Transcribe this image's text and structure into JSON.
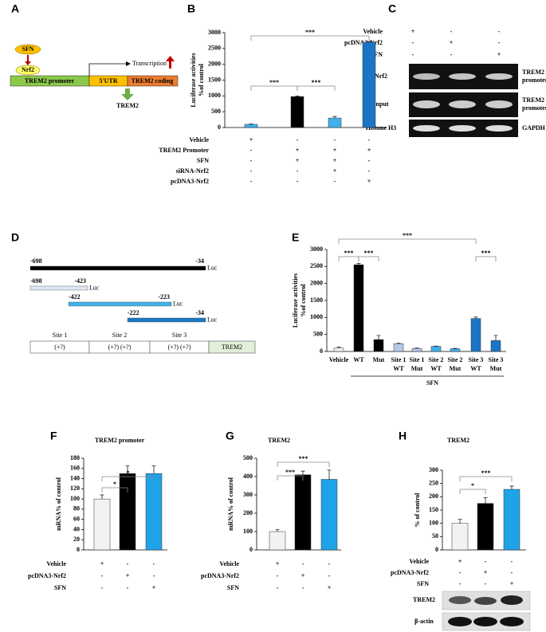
{
  "panels": [
    "A",
    "B",
    "C",
    "D",
    "E",
    "F",
    "G",
    "H"
  ],
  "diagram_a": {
    "sfn": "SFN",
    "nrf2": "Nrf2",
    "promoter": "TREM2 promoter",
    "utr": "5'UTR",
    "coding": "TREM2 coding",
    "transcription": "Transcription",
    "product": "TREM2"
  },
  "blot_c": {
    "conditions": [
      {
        "name": "Vehicle",
        "marks": [
          "+",
          "-",
          "-"
        ]
      },
      {
        "name": "pcDNA3-Nrf2",
        "marks": [
          "-",
          "+",
          "-"
        ]
      },
      {
        "name": "SFN",
        "marks": [
          "-",
          "-",
          "+"
        ]
      }
    ],
    "rows": [
      {
        "name": "Nrf2",
        "target": "TREM2 promoter"
      },
      {
        "name": "Input",
        "target": "TREM2 promoter"
      },
      {
        "name": "Histone H3",
        "target": "GAPDH"
      }
    ]
  },
  "constructs_d": {
    "constructs": [
      {
        "start": "-698",
        "end": "-34",
        "label": "Luc"
      },
      {
        "start": "-698",
        "end": "-423",
        "label": "Luc"
      },
      {
        "start": "-422",
        "end": "-223",
        "label": "Luc"
      },
      {
        "start": "-222",
        "end": "-34",
        "label": "Luc"
      }
    ],
    "sites": [
      {
        "name": "Site 1",
        "marks": "(+?)"
      },
      {
        "name": "Site 2",
        "marks": "(+?)  (+?)"
      },
      {
        "name": "Site 3",
        "marks": "(+?)  (+?)"
      }
    ],
    "gene": "TREM2"
  },
  "blot_h": {
    "rows": [
      "TREM2",
      "β-actin"
    ]
  },
  "chart_data": [
    {
      "type": "bar",
      "ylabel": [
        "Luciferase  activities",
        "%of control"
      ],
      "categories": [
        null,
        null,
        null,
        null
      ],
      "values": [
        100,
        980,
        300,
        2700
      ],
      "errors": [
        15,
        20,
        50,
        20
      ],
      "colors": [
        "#3fb0ea",
        "#000000",
        "#3fb0ea",
        "#1b75c4"
      ],
      "ylim": [
        0,
        3000
      ],
      "yticks": [
        0,
        500,
        1000,
        1500,
        2000,
        2500,
        3000
      ],
      "significance": [
        {
          "label": "***",
          "from": 0,
          "to": 1
        },
        {
          "label": "***",
          "from": 1,
          "to": 2
        },
        {
          "label": "***",
          "from": 0,
          "to": 3
        }
      ],
      "conditions": [
        {
          "name": "Vehicle",
          "marks": [
            "+",
            "-",
            "-",
            "-"
          ]
        },
        {
          "name": "TREM2 Promoter",
          "marks": [
            "-",
            "+",
            "+",
            "+"
          ]
        },
        {
          "name": "SFN",
          "marks": [
            "-",
            "+",
            "+",
            "-"
          ]
        },
        {
          "name": "siRNA-Nrf2",
          "marks": [
            "-",
            "-",
            "+",
            "-"
          ]
        },
        {
          "name": "pcDNA3-Nrf2",
          "marks": [
            "-",
            "-",
            "-",
            "+"
          ]
        }
      ]
    },
    {
      "type": "bar",
      "ylabel": [
        "Luciferase  activities",
        "%of control"
      ],
      "categories": [
        "Vehicle",
        "WT",
        "Mut",
        "Site 1 WT",
        "Site 1 Mut",
        "Site 2 WT",
        "Site 2 Mut",
        "Site 3 WT",
        "Site 3 Mut"
      ],
      "group_label": "SFN",
      "values": [
        100,
        2550,
        350,
        230,
        90,
        150,
        80,
        970,
        320
      ],
      "errors": [
        30,
        40,
        120,
        10,
        10,
        10,
        10,
        40,
        150
      ],
      "colors": [
        "#eeeeee",
        "#000000",
        "#000000",
        "#b4c7e7",
        "#b4c7e7",
        "#3fb0ea",
        "#3fb0ea",
        "#1b75c4",
        "#1b75c4"
      ],
      "ylim": [
        0,
        3000
      ],
      "yticks": [
        0,
        500,
        1000,
        1500,
        2000,
        2500,
        3000
      ],
      "significance": [
        {
          "label": "***",
          "from": 0,
          "to": 1
        },
        {
          "label": "***",
          "from": 1,
          "to": 2
        },
        {
          "label": "***",
          "from": 0,
          "to": 7
        },
        {
          "label": "***",
          "from": 7,
          "to": 8
        }
      ]
    },
    {
      "type": "bar",
      "title": "TREM2 promoter",
      "ylabel": [
        "mRNA% of control"
      ],
      "categories": [
        null,
        null,
        null
      ],
      "values": [
        100,
        150,
        150
      ],
      "errors": [
        8,
        15,
        15
      ],
      "colors": [
        "#f2f2f2",
        "#000000",
        "#1fa3e8"
      ],
      "ylim": [
        0,
        180
      ],
      "yticks": [
        0,
        20,
        40,
        60,
        80,
        100,
        120,
        140,
        160,
        180
      ],
      "significance": [
        {
          "label": "*",
          "from": 0,
          "to": 1
        },
        {
          "label": "*",
          "from": 0,
          "to": 2
        }
      ],
      "conditions": [
        {
          "name": "Vehicle",
          "marks": [
            "+",
            "-",
            "-"
          ]
        },
        {
          "name": "pcDNA3-Nrf2",
          "marks": [
            "-",
            "+",
            "-"
          ]
        },
        {
          "name": "SFN",
          "marks": [
            "-",
            "-",
            "+"
          ]
        }
      ]
    },
    {
      "type": "bar",
      "title": "TREM2",
      "ylabel": [
        "mRNA% of control"
      ],
      "categories": [
        null,
        null,
        null
      ],
      "values": [
        100,
        410,
        385
      ],
      "errors": [
        10,
        20,
        50
      ],
      "colors": [
        "#f2f2f2",
        "#000000",
        "#1fa3e8"
      ],
      "ylim": [
        0,
        500
      ],
      "yticks": [
        0,
        100,
        200,
        300,
        400,
        500
      ],
      "significance": [
        {
          "label": "***",
          "from": 0,
          "to": 1
        },
        {
          "label": "***",
          "from": 0,
          "to": 2
        }
      ],
      "conditions": [
        {
          "name": "Vehicle",
          "marks": [
            "+",
            "-",
            "-"
          ]
        },
        {
          "name": "pcDNA3-Nrf2",
          "marks": [
            "-",
            "+",
            "-"
          ]
        },
        {
          "name": "SFN",
          "marks": [
            "-",
            "-",
            "+"
          ]
        }
      ]
    },
    {
      "type": "bar",
      "title": "TREM2",
      "ylabel": [
        "% of control"
      ],
      "categories": [
        null,
        null,
        null
      ],
      "values": [
        100,
        175,
        228
      ],
      "errors": [
        15,
        22,
        12
      ],
      "colors": [
        "#f2f2f2",
        "#000000",
        "#1fa3e8"
      ],
      "ylim": [
        0,
        300
      ],
      "yticks": [
        0,
        50,
        100,
        150,
        200,
        250,
        300
      ],
      "significance": [
        {
          "label": "*",
          "from": 0,
          "to": 1
        },
        {
          "label": "***",
          "from": 0,
          "to": 2
        }
      ],
      "conditions": [
        {
          "name": "Vehicle",
          "marks": [
            "+",
            "-",
            "-"
          ]
        },
        {
          "name": "pcDNA3-Nrf2",
          "marks": [
            "-",
            "+",
            "-"
          ]
        },
        {
          "name": "SFN",
          "marks": [
            "-",
            "-",
            "+"
          ]
        }
      ]
    }
  ]
}
